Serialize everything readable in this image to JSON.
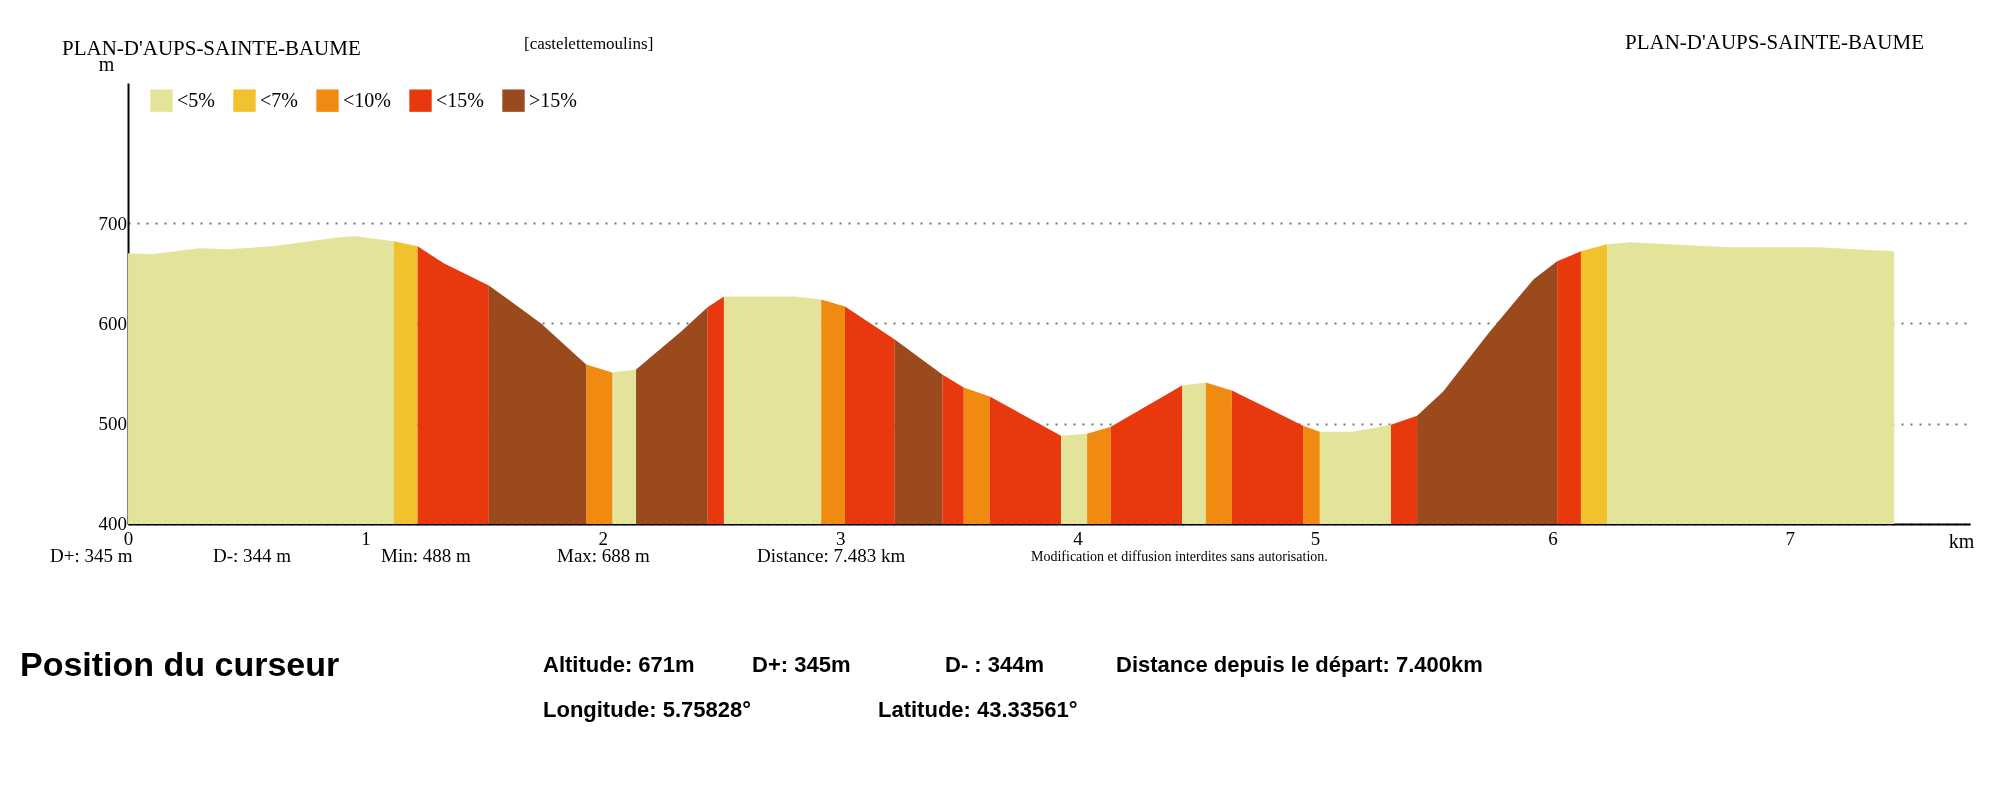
{
  "chart_data": {
    "type": "area",
    "title": "PLAN-D'AUPS-SAINTE-BAUME",
    "xlabel": "km",
    "ylabel": "m",
    "xlim": [
      0,
      7.76
    ],
    "xticks": [
      0,
      1,
      2,
      3,
      4,
      5,
      6,
      7
    ],
    "ylim": [
      400,
      840
    ],
    "yticks": [
      400,
      500,
      600,
      700
    ],
    "grid": "y",
    "legend": "top left",
    "series": [
      {
        "name": "<5%",
        "color": "#e3e499",
        "x": [
          0,
          0.1,
          0.3,
          0.42,
          0.61,
          0.89,
          0.96,
          1.12,
          null,
          2.04,
          2.14,
          null,
          2.51,
          2.81,
          2.92,
          null,
          3.93,
          4.04,
          null,
          4.44,
          4.54,
          null,
          5.02,
          5.16,
          5.32,
          null,
          6.23,
          6.33,
          6.74,
          7.12,
          7.44
        ],
        "values": [
          670,
          669,
          675,
          674,
          677,
          686,
          687,
          682,
          null,
          551,
          554,
          null,
          627,
          627,
          624,
          null,
          488,
          490,
          null,
          538,
          541,
          null,
          492,
          492,
          499,
          null,
          679,
          681,
          676,
          676,
          672
        ]
      },
      {
        "name": "<7%",
        "color": "#f2c12e",
        "x": [
          1.12,
          1.22,
          null,
          6.12,
          6.23
        ],
        "values": [
          682,
          677,
          null,
          672,
          679
        ]
      },
      {
        "name": "<10%",
        "color": "#f08a10",
        "x": [
          1.93,
          2.04,
          null,
          2.92,
          3.02,
          null,
          3.52,
          3.63,
          null,
          4.04,
          4.14,
          null,
          4.54,
          4.65,
          null,
          4.95,
          5.02
        ],
        "values": [
          559,
          551,
          null,
          624,
          617,
          null,
          536,
          527,
          null,
          490,
          497,
          null,
          541,
          533,
          null,
          498,
          492
        ]
      },
      {
        "name": "<15%",
        "color": "#e8380d",
        "x": [
          1.22,
          1.33,
          1.52,
          null,
          2.44,
          2.51,
          null,
          3.02,
          3.23,
          null,
          3.43,
          3.52,
          null,
          3.63,
          3.93,
          null,
          4.14,
          4.44,
          null,
          4.65,
          4.95,
          null,
          5.32,
          5.43,
          null,
          6.02,
          6.12
        ],
        "values": [
          677,
          660,
          638,
          null,
          616,
          627,
          null,
          617,
          584,
          null,
          549,
          536,
          null,
          527,
          488,
          null,
          497,
          538,
          null,
          533,
          498,
          null,
          499,
          508,
          null,
          662,
          672
        ]
      },
      {
        "name": ">15%",
        "color": "#9a4a1c",
        "x": [
          1.52,
          1.74,
          1.93,
          null,
          2.14,
          2.33,
          2.44,
          null,
          3.23,
          3.43,
          null,
          5.43,
          5.54,
          5.73,
          5.92,
          6.02
        ],
        "values": [
          638,
          600,
          559,
          null,
          554,
          592,
          616,
          null,
          584,
          549,
          null,
          508,
          532,
          590,
          644,
          662
        ]
      }
    ],
    "annotations": [
      "PLAN-D'AUPS-SAINTE-BAUME",
      "[castelettemoulins]",
      "D+: 345 m",
      "D-: 344 m",
      "Min: 488 m",
      "Max: 688 m",
      "Distance: 7.483 km",
      "Modification et diffusion interdites sans autorisation.",
      "Position du curseur",
      "Altitude: 671m",
      "D+: 345m",
      "D- : 344m",
      "Distance depuis le départ: 7.400km",
      "Longitude: 5.75828°",
      "Latitude: 43.33561°"
    ]
  }
}
